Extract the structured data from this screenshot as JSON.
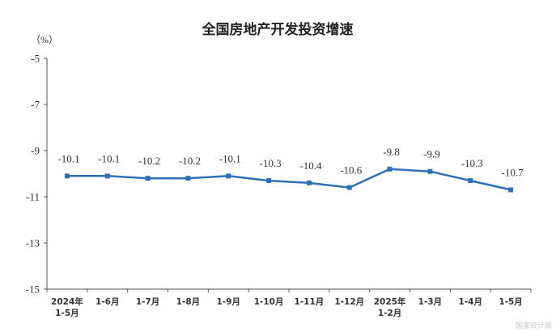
{
  "chart_data": {
    "type": "line",
    "title": "全国房地产开发投资增速",
    "unit_label": "（%）",
    "xlabel": "",
    "ylabel": "",
    "categories": [
      [
        "2024年",
        "1-5月"
      ],
      [
        "1-6月"
      ],
      [
        "1-7月"
      ],
      [
        "1-8月"
      ],
      [
        "1-9月"
      ],
      [
        "1-10月"
      ],
      [
        "1-11月"
      ],
      [
        "1-12月"
      ],
      [
        "2025年",
        "1-2月"
      ],
      [
        "1-3月"
      ],
      [
        "1-4月"
      ],
      [
        "1-5月"
      ]
    ],
    "series": [
      {
        "values": [
          -10.1,
          -10.1,
          -10.2,
          -10.2,
          -10.1,
          -10.3,
          -10.4,
          -10.6,
          -9.8,
          -9.9,
          -10.3,
          -10.7
        ],
        "labels": [
          "-10.1",
          "-10.1",
          "-10.2",
          "-10.2",
          "-10.1",
          "-10.3",
          "-10.4",
          "-10.6",
          "-9.8",
          "-9.9",
          "-10.3",
          "-10.7"
        ],
        "color": "#2f6fb8"
      }
    ],
    "ylim": [
      -15,
      -5
    ],
    "yticks": [
      -5,
      -7,
      -9,
      -11,
      -13,
      -15
    ],
    "ytick_labels": [
      "-5",
      "-7",
      "-9",
      "-11",
      "-13",
      "-15"
    ],
    "grid": false,
    "legend": "none",
    "axis_color": "#555555"
  },
  "watermark": "国家统计局"
}
